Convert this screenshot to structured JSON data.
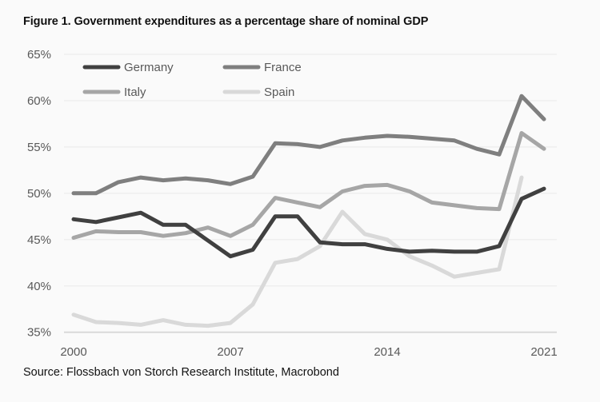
{
  "title": "Figure 1. Government expenditures as a percentage share of nominal GDP",
  "source": "Source: Flossbach von Storch Research Institute, Macrobond",
  "chart_data": {
    "type": "line",
    "title": "Figure 1. Government expenditures as a percentage share of nominal GDP",
    "xlabel": "",
    "ylabel": "",
    "x": [
      2000,
      2001,
      2002,
      2003,
      2004,
      2005,
      2006,
      2007,
      2008,
      2009,
      2010,
      2011,
      2012,
      2013,
      2014,
      2015,
      2016,
      2017,
      2018,
      2019,
      2020,
      2021
    ],
    "xlim": [
      2000,
      2021
    ],
    "x_ticks": [
      2000,
      2007,
      2014,
      2021
    ],
    "x_tick_labels": [
      "2000",
      "2007",
      "2014",
      "2021"
    ],
    "ylim": [
      35,
      65
    ],
    "y_ticks": [
      35,
      40,
      45,
      50,
      55,
      60,
      65
    ],
    "y_tick_labels": [
      "35%",
      "40%",
      "45%",
      "50%",
      "55%",
      "60%",
      "65%"
    ],
    "grid": "horizontal",
    "legend_position": "top-left",
    "series": [
      {
        "name": "Germany",
        "color": "#404040",
        "values": [
          47.2,
          46.9,
          47.4,
          47.9,
          46.6,
          46.6,
          44.9,
          43.2,
          43.9,
          47.5,
          47.5,
          44.7,
          44.5,
          44.5,
          44.0,
          43.7,
          43.8,
          43.7,
          43.7,
          44.3,
          49.4,
          50.5
        ]
      },
      {
        "name": "France",
        "color": "#7f7f7f",
        "values": [
          50.0,
          50.0,
          51.2,
          51.7,
          51.4,
          51.6,
          51.4,
          51.0,
          51.8,
          55.4,
          55.3,
          55.0,
          55.7,
          56.0,
          56.2,
          56.1,
          55.9,
          55.7,
          54.8,
          54.2,
          60.5,
          58.0
        ]
      },
      {
        "name": "Italy",
        "color": "#a6a6a6",
        "values": [
          45.2,
          45.9,
          45.8,
          45.8,
          45.4,
          45.7,
          46.3,
          45.4,
          46.6,
          49.5,
          49.0,
          48.5,
          50.2,
          50.8,
          50.9,
          50.2,
          49.0,
          48.7,
          48.4,
          48.3,
          56.5,
          54.8
        ]
      },
      {
        "name": "Spain",
        "color": "#d9d9d9",
        "values": [
          36.9,
          36.1,
          36.0,
          35.8,
          36.3,
          35.8,
          35.7,
          36.0,
          38.0,
          42.5,
          42.9,
          44.3,
          48.0,
          45.6,
          45.0,
          43.2,
          42.2,
          41.0,
          41.4,
          41.8,
          51.7,
          null
        ]
      }
    ]
  }
}
